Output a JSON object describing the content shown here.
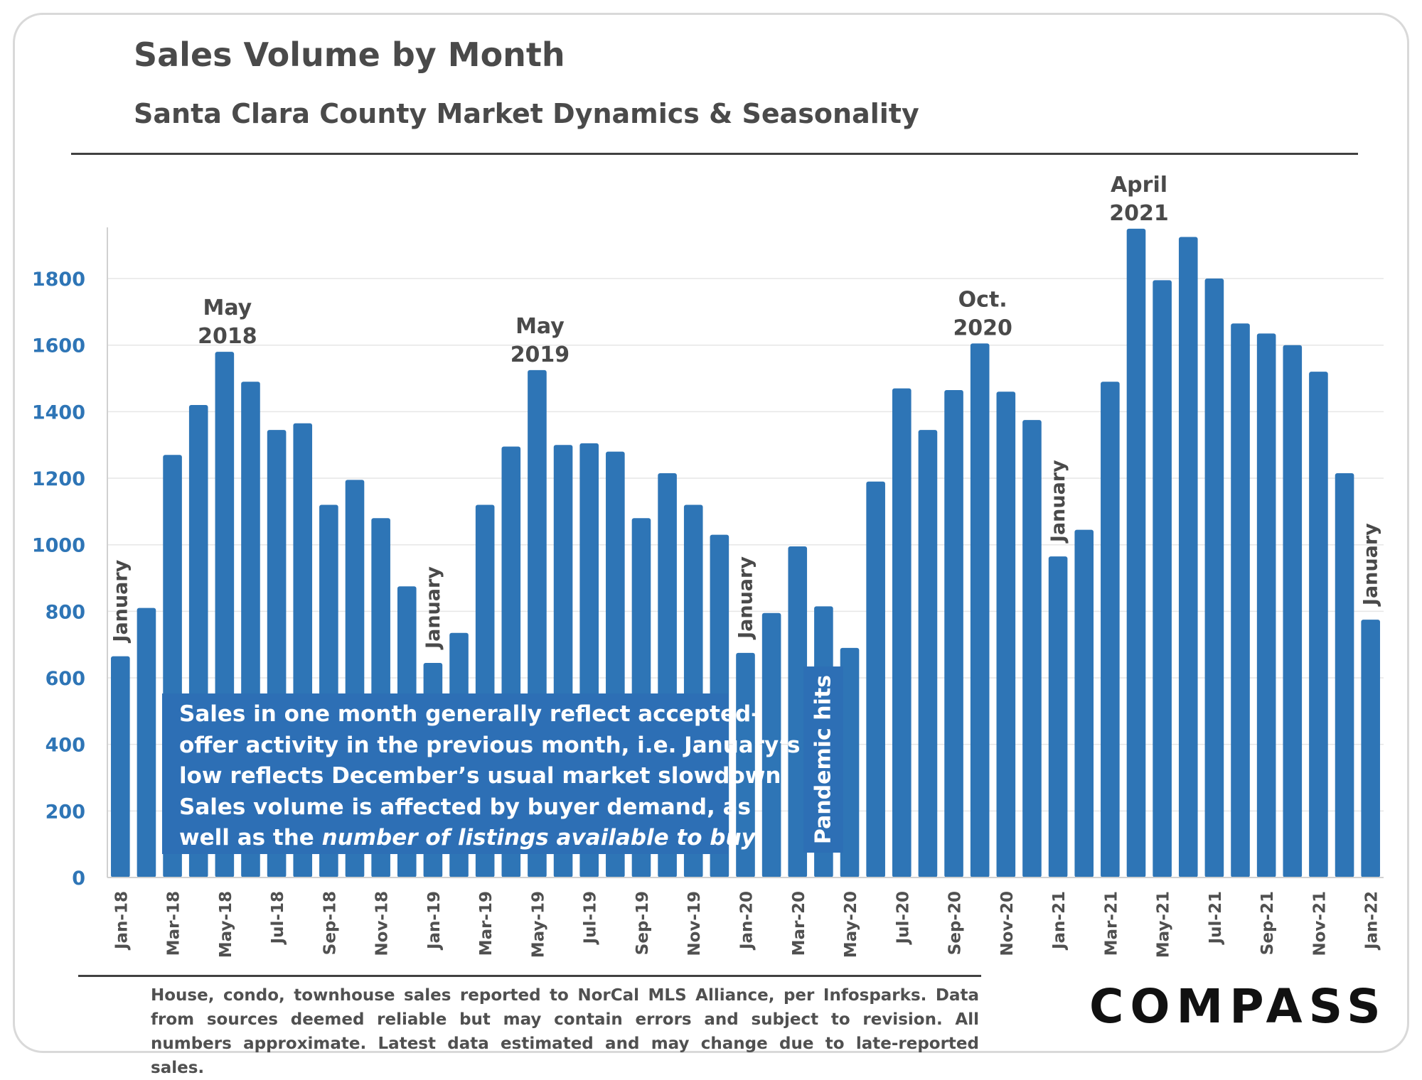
{
  "header": {
    "title": "Sales Volume by Month",
    "subtitle": "Santa Clara County Market Dynamics & Seasonality"
  },
  "callout": {
    "lines": [
      "Sales in one month generally reflect accepted-",
      "offer activity in the previous month, i.e. January’s",
      "low reflects December’s usual market slowdown.",
      "Sales volume is affected by buyer demand, as"
    ],
    "last_prefix": "well as the ",
    "last_italic": "number of listings available to buy",
    "last_suffix": "."
  },
  "pandemic_label": "Pandemic hits",
  "footnote": "House, condo, townhouse sales reported to NorCal MLS Alliance, per Infosparks. Data from sources deemed reliable but may contain errors and subject to revision. All numbers approximate. Latest data estimated and may change due to late-reported sales.",
  "logo": "COMPASS",
  "colors": {
    "bar": "#2e75b6",
    "axis_labels": "#2e75b6",
    "text": "#4a4a4a"
  },
  "chart_data": {
    "type": "bar",
    "categories": [
      "Jan-18",
      "Feb-18",
      "Mar-18",
      "Apr-18",
      "May-18",
      "Jun-18",
      "Jul-18",
      "Aug-18",
      "Sep-18",
      "Oct-18",
      "Nov-18",
      "Dec-18",
      "Jan-19",
      "Feb-19",
      "Mar-19",
      "Apr-19",
      "May-19",
      "Jun-19",
      "Jul-19",
      "Aug-19",
      "Sep-19",
      "Oct-19",
      "Nov-19",
      "Dec-19",
      "Jan-20",
      "Feb-20",
      "Mar-20",
      "Apr-20",
      "May-20",
      "Jun-20",
      "Jul-20",
      "Aug-20",
      "Sep-20",
      "Oct-20",
      "Nov-20",
      "Dec-20",
      "Jan-21",
      "Feb-21",
      "Mar-21",
      "Apr-21",
      "May-21",
      "Jun-21",
      "Jul-21",
      "Aug-21",
      "Sep-21",
      "Oct-21",
      "Nov-21",
      "Dec-21",
      "Jan-22"
    ],
    "values": [
      665,
      810,
      1270,
      1420,
      1580,
      1490,
      1345,
      1365,
      1120,
      1195,
      1080,
      875,
      645,
      735,
      1120,
      1295,
      1525,
      1300,
      1305,
      1280,
      1080,
      1215,
      1120,
      1030,
      675,
      795,
      995,
      815,
      690,
      1190,
      1470,
      1345,
      1465,
      1605,
      1460,
      1375,
      965,
      1045,
      1490,
      1950,
      1795,
      1925,
      1800,
      1665,
      1635,
      1600,
      1520,
      1215,
      775
    ],
    "tick_labels": [
      "Jan-18",
      "Mar-18",
      "May-18",
      "Jul-18",
      "Sep-18",
      "Nov-18",
      "Jan-19",
      "Mar-19",
      "May-19",
      "Jul-19",
      "Sep-19",
      "Nov-19",
      "Jan-20",
      "Mar-20",
      "May-20",
      "Jul-20",
      "Sep-20",
      "Nov-20",
      "Jan-21",
      "Mar-21",
      "May-21",
      "Jul-21",
      "Sep-21",
      "Nov-21",
      "Jan-22"
    ],
    "ylim": [
      0,
      1950
    ],
    "yticks": [
      0,
      200,
      400,
      600,
      800,
      1000,
      1200,
      1400,
      1600,
      1800
    ],
    "grid": true,
    "annotations": [
      {
        "category": "May-18",
        "lines": [
          "May",
          "2018"
        ]
      },
      {
        "category": "May-19",
        "lines": [
          "May",
          "2019"
        ]
      },
      {
        "category": "Oct-20",
        "lines": [
          "Oct.",
          "2020"
        ]
      },
      {
        "category": "Apr-21",
        "lines": [
          "April",
          "2021"
        ]
      }
    ],
    "vertical_labels": [
      {
        "category": "Jan-18",
        "text": "January"
      },
      {
        "category": "Jan-19",
        "text": "January"
      },
      {
        "category": "Jan-20",
        "text": "January"
      },
      {
        "category": "Jan-21",
        "text": "January"
      },
      {
        "category": "Jan-22",
        "text": "January"
      }
    ]
  }
}
